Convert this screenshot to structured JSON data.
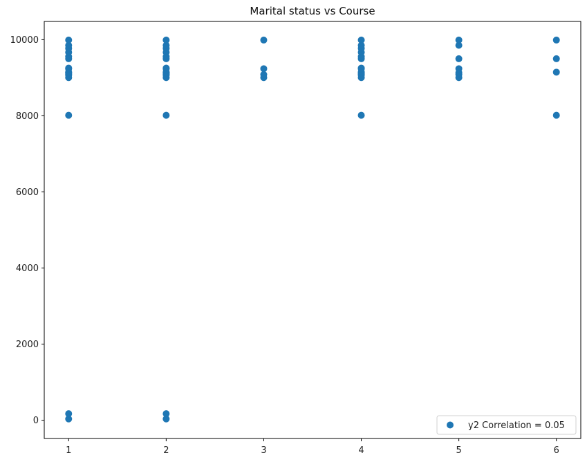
{
  "chart_data": {
    "type": "scatter",
    "title": "Marital status vs Course",
    "xlabel": "",
    "ylabel": "",
    "xlim": [
      0.75,
      6.25
    ],
    "ylim": [
      -480,
      10480
    ],
    "xticks": [
      1,
      2,
      3,
      4,
      5,
      6
    ],
    "yticks": [
      0,
      2000,
      4000,
      6000,
      8000,
      10000
    ],
    "grid": false,
    "legend_position": "lower-right",
    "point_color": "#1f77b4",
    "series": [
      {
        "name": "y2 Correlation = 0.05",
        "points": [
          [
            1,
            33
          ],
          [
            1,
            171
          ],
          [
            1,
            8014
          ],
          [
            1,
            9003
          ],
          [
            1,
            9070
          ],
          [
            1,
            9085
          ],
          [
            1,
            9119
          ],
          [
            1,
            9130
          ],
          [
            1,
            9147
          ],
          [
            1,
            9238
          ],
          [
            1,
            9254
          ],
          [
            1,
            9500
          ],
          [
            1,
            9556
          ],
          [
            1,
            9670
          ],
          [
            1,
            9773
          ],
          [
            1,
            9853
          ],
          [
            1,
            9991
          ],
          [
            2,
            33
          ],
          [
            2,
            171
          ],
          [
            2,
            8014
          ],
          [
            2,
            9003
          ],
          [
            2,
            9070
          ],
          [
            2,
            9085
          ],
          [
            2,
            9119
          ],
          [
            2,
            9130
          ],
          [
            2,
            9147
          ],
          [
            2,
            9238
          ],
          [
            2,
            9254
          ],
          [
            2,
            9500
          ],
          [
            2,
            9556
          ],
          [
            2,
            9670
          ],
          [
            2,
            9773
          ],
          [
            2,
            9853
          ],
          [
            2,
            9991
          ],
          [
            3,
            9003
          ],
          [
            3,
            9085
          ],
          [
            3,
            9238
          ],
          [
            3,
            9991
          ],
          [
            4,
            8014
          ],
          [
            4,
            9003
          ],
          [
            4,
            9070
          ],
          [
            4,
            9085
          ],
          [
            4,
            9119
          ],
          [
            4,
            9130
          ],
          [
            4,
            9147
          ],
          [
            4,
            9238
          ],
          [
            4,
            9254
          ],
          [
            4,
            9500
          ],
          [
            4,
            9556
          ],
          [
            4,
            9670
          ],
          [
            4,
            9773
          ],
          [
            4,
            9853
          ],
          [
            4,
            9991
          ],
          [
            5,
            9003
          ],
          [
            5,
            9085
          ],
          [
            5,
            9130
          ],
          [
            5,
            9238
          ],
          [
            5,
            9500
          ],
          [
            5,
            9853
          ],
          [
            5,
            9991
          ],
          [
            6,
            8014
          ],
          [
            6,
            9147
          ],
          [
            6,
            9500
          ],
          [
            6,
            9991
          ]
        ]
      }
    ]
  }
}
